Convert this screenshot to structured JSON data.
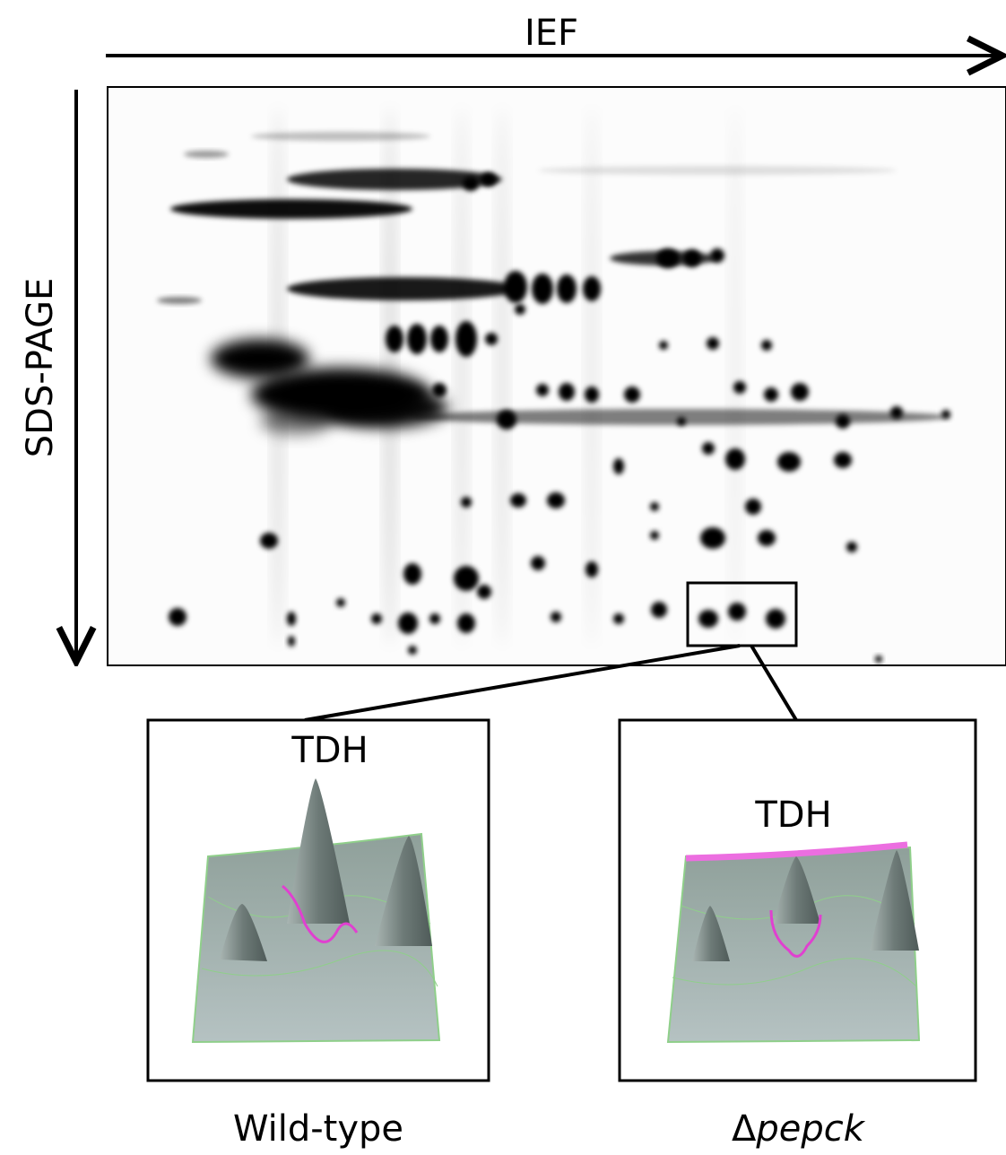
{
  "axes": {
    "horizontal": "IEF",
    "vertical": "SDS-PAGE"
  },
  "panels": [
    {
      "label": "TDH",
      "caption": "Wild-type"
    },
    {
      "label": "TDH",
      "caption": {
        "prefix": "Δ",
        "italic": "pepck"
      }
    }
  ]
}
